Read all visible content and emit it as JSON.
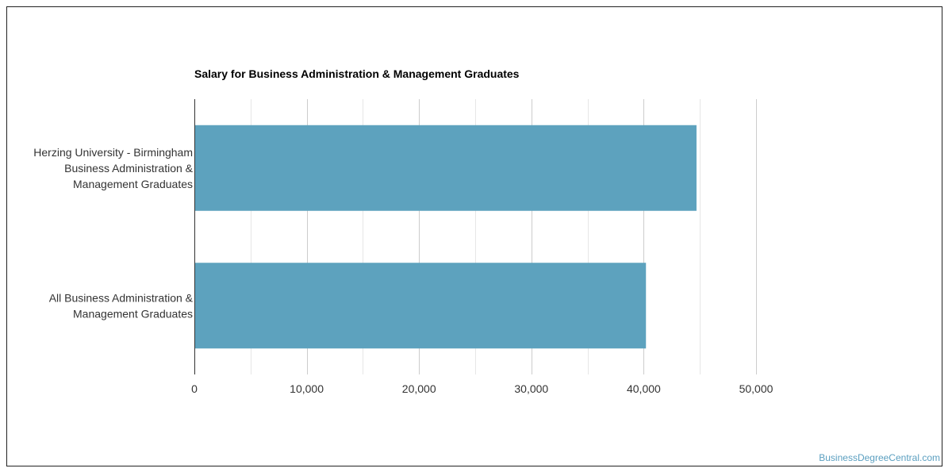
{
  "chart_data": {
    "type": "bar",
    "orientation": "horizontal",
    "title": "Salary for Business Administration & Management Graduates",
    "categories": [
      [
        "Herzing University - Birmingham",
        "Business Administration &",
        "Management Graduates"
      ],
      [
        "All Business Administration &",
        "Management Graduates"
      ]
    ],
    "values": [
      44700,
      40200
    ],
    "xlim": [
      0,
      50000
    ],
    "xticks": [
      0,
      10000,
      20000,
      30000,
      40000,
      50000
    ],
    "xtick_labels": [
      "0",
      "10,000",
      "20,000",
      "30,000",
      "40,000",
      "50,000"
    ],
    "grid": true,
    "bar_color": "#5da2be"
  },
  "credit": "BusinessDegreeCentral.com"
}
